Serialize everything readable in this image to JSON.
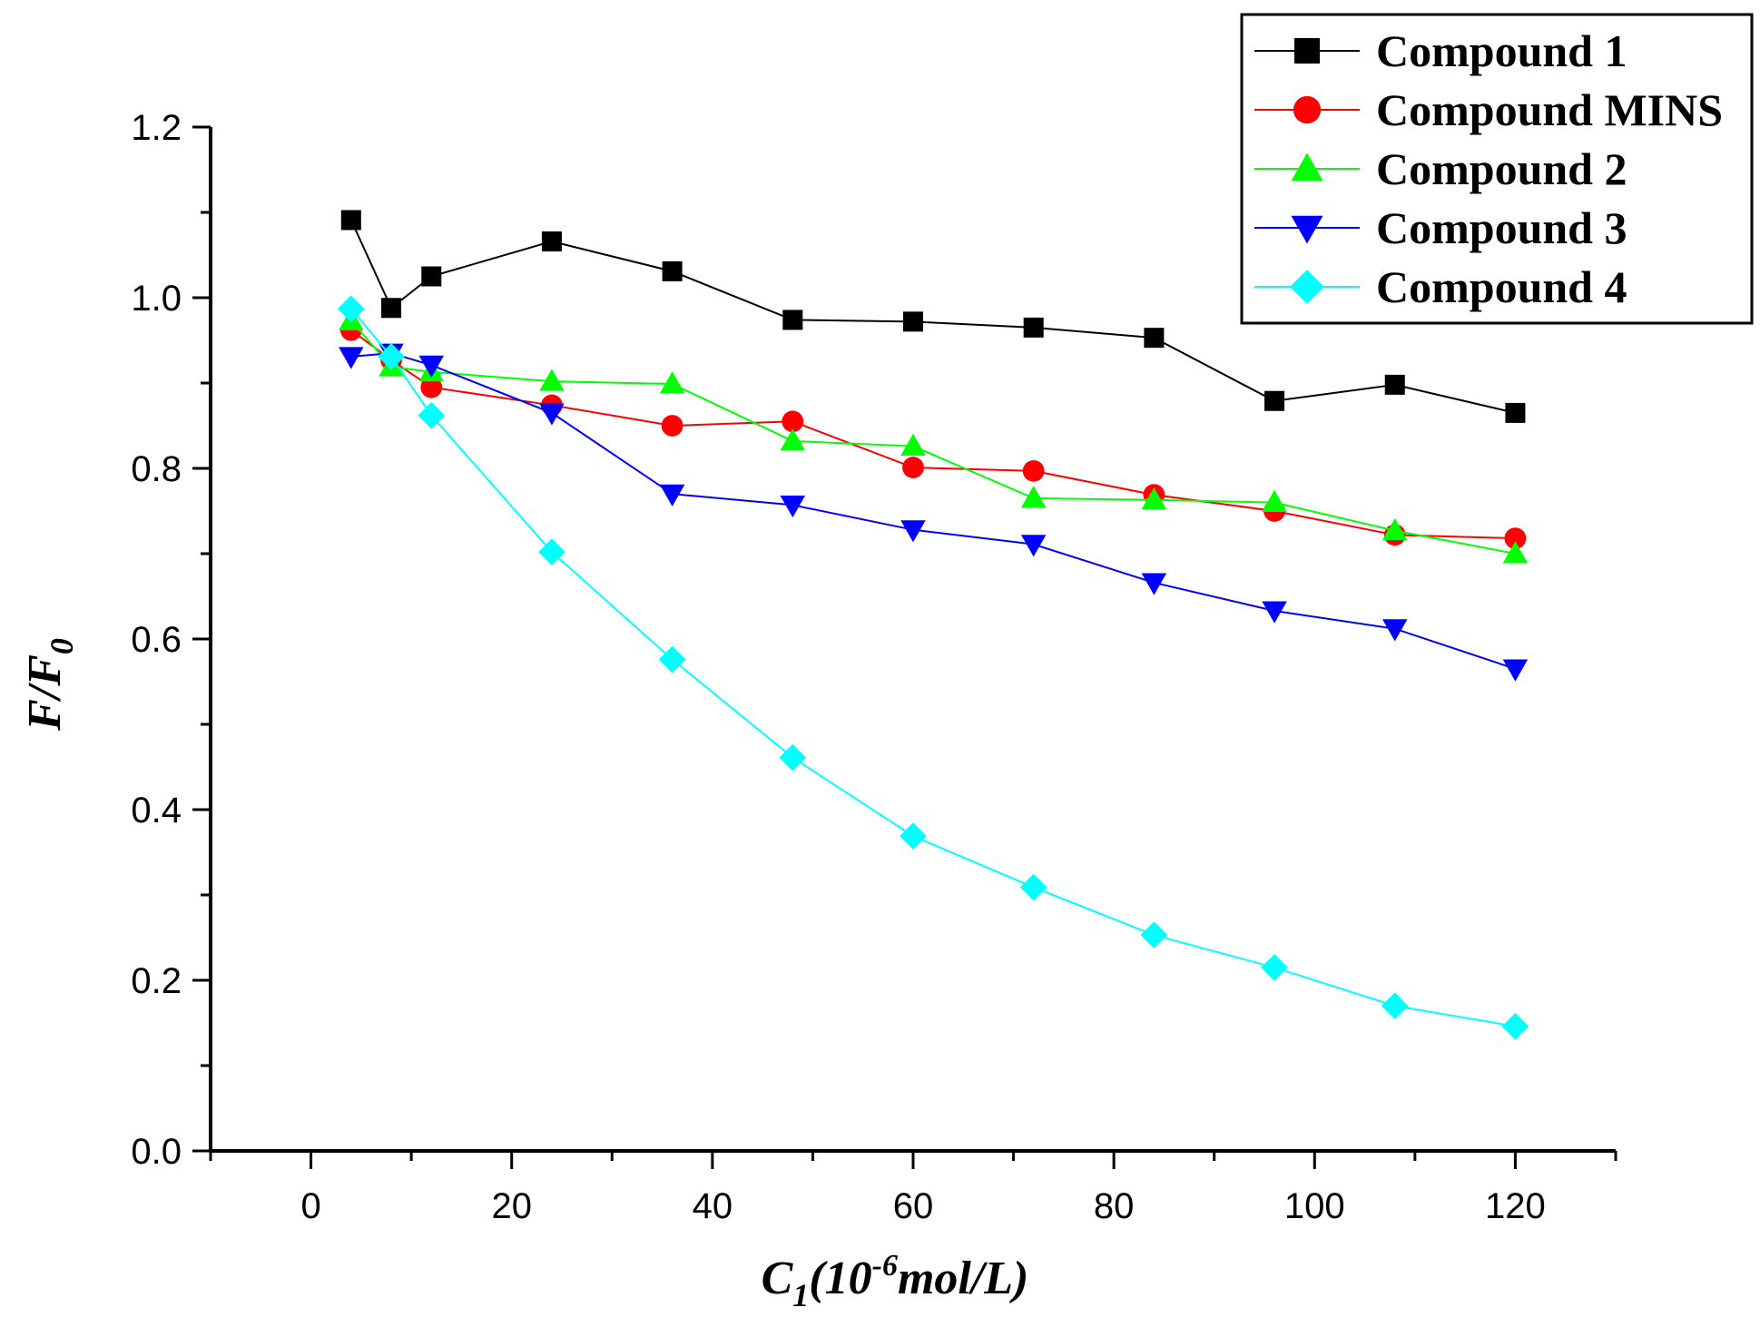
{
  "chart_data": {
    "type": "line",
    "title": "",
    "xlabel": {
      "main": "C",
      "sub": "1",
      "pre": "(10",
      "sup": "-6",
      "post": "mol/L)"
    },
    "ylabel": {
      "main": "F/F",
      "sub": "0"
    },
    "xlim": [
      -10,
      130
    ],
    "ylim": [
      0.0,
      1.2
    ],
    "xticks": [
      0,
      20,
      40,
      60,
      80,
      100,
      120
    ],
    "xtick_labels": [
      "0",
      "20",
      "40",
      "60",
      "80",
      "100",
      "120"
    ],
    "yticks": [
      0.0,
      0.2,
      0.4,
      0.6,
      0.8,
      1.0,
      1.2
    ],
    "ytick_labels": [
      "0.0",
      "0.2",
      "0.4",
      "0.6",
      "0.8",
      "1.0",
      "1.2"
    ],
    "grid": false,
    "legend_position": "top-right",
    "x": [
      4,
      8,
      12,
      24,
      36,
      48,
      60,
      72,
      84,
      96,
      108,
      120
    ],
    "series": [
      {
        "name": "Compound 1",
        "color": "#000000",
        "marker": "square",
        "values": [
          1.091,
          0.988,
          1.025,
          1.066,
          1.031,
          0.974,
          0.972,
          0.965,
          0.953,
          0.879,
          0.898,
          0.865
        ]
      },
      {
        "name": "Compound MINS",
        "color": "#ff0000",
        "marker": "circle",
        "values": [
          0.962,
          0.927,
          0.895,
          0.874,
          0.85,
          0.855,
          0.801,
          0.797,
          0.769,
          0.75,
          0.722,
          0.718
        ]
      },
      {
        "name": "Compound 2",
        "color": "#00ff00",
        "marker": "triangle-up",
        "values": [
          0.973,
          0.919,
          0.913,
          0.902,
          0.899,
          0.832,
          0.826,
          0.765,
          0.763,
          0.76,
          0.727,
          0.7
        ]
      },
      {
        "name": "Compound 3",
        "color": "#0000ff",
        "marker": "triangle-down",
        "values": [
          0.931,
          0.935,
          0.921,
          0.865,
          0.77,
          0.757,
          0.728,
          0.711,
          0.666,
          0.633,
          0.612,
          0.565
        ]
      },
      {
        "name": "Compound 4",
        "color": "#00ffff",
        "marker": "diamond",
        "values": [
          0.987,
          0.931,
          0.862,
          0.702,
          0.576,
          0.461,
          0.369,
          0.309,
          0.253,
          0.215,
          0.17,
          0.146
        ]
      }
    ]
  }
}
